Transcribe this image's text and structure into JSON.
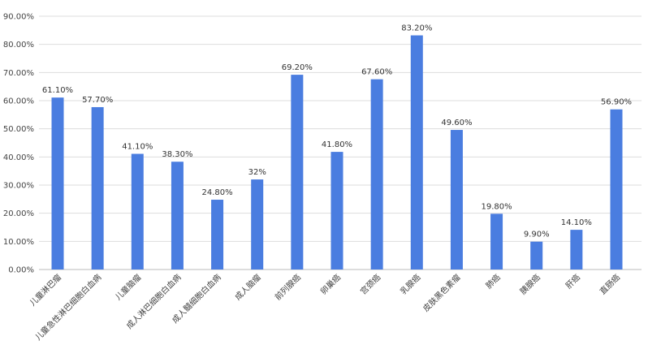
{
  "chart_data": {
    "type": "bar",
    "title": "",
    "xlabel": "",
    "ylabel": "",
    "ylim": [
      0,
      90
    ],
    "grid": true,
    "legend": "none",
    "bar_color": "#4a7de0",
    "y_ticks": [
      0,
      10,
      20,
      30,
      40,
      50,
      60,
      70,
      80,
      90
    ],
    "y_tick_labels": [
      "0.00%",
      "10.00%",
      "20.00%",
      "30.00%",
      "40.00%",
      "50.00%",
      "60.00%",
      "70.00%",
      "80.00%",
      "90.00%"
    ],
    "categories": [
      "儿童淋巴瘤",
      "儿童急性淋巴细胞白血病",
      "儿童脑瘤",
      "成人淋巴细胞白血病",
      "成人髓细胞白血病",
      "成人脑瘤",
      "前列腺癌",
      "卵巢癌",
      "宫颈癌",
      "乳腺癌",
      "皮肤黑色素瘤",
      "肺癌",
      "胰腺癌",
      "肝癌",
      "直肠癌"
    ],
    "values": [
      61.1,
      57.7,
      41.1,
      38.3,
      24.8,
      32,
      69.2,
      41.8,
      67.6,
      83.2,
      49.6,
      19.8,
      9.9,
      14.1,
      56.9
    ],
    "value_labels": [
      "61.10%",
      "57.70%",
      "41.10%",
      "38.30%",
      "24.80%",
      "32%",
      "69.20%",
      "41.80%",
      "67.60%",
      "83.20%",
      "49.60%",
      "19.80%",
      "9.90%",
      "14.10%",
      "56.90%"
    ]
  }
}
